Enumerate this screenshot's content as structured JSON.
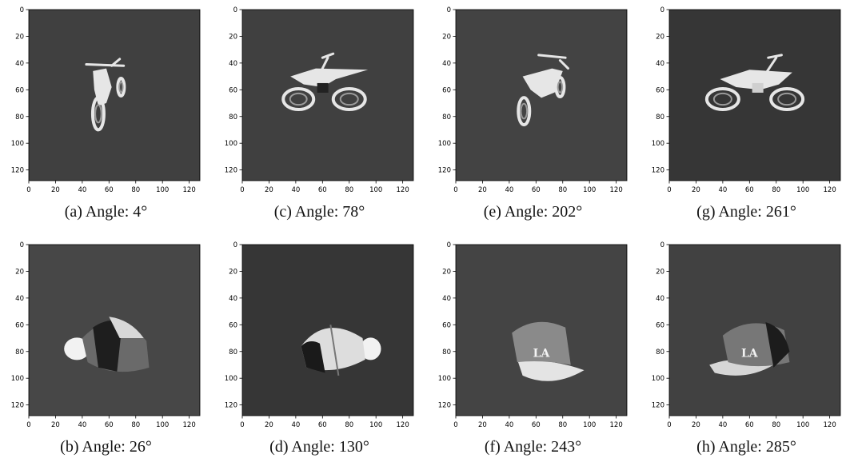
{
  "figure": {
    "axis": {
      "ticks": [
        0,
        20,
        40,
        60,
        80,
        100,
        120
      ],
      "xlim": [
        0,
        128
      ],
      "ylim": [
        0,
        128
      ],
      "y_inverted": true
    },
    "panels": [
      {
        "caption": "(a) Angle: 4°",
        "object": "motorcycle",
        "pose": "rear-three-quarter",
        "bg": "#404040"
      },
      {
        "caption": "(c) Angle: 78°",
        "object": "motorcycle",
        "pose": "side-left",
        "bg": "#404040"
      },
      {
        "caption": "(e) Angle: 202°",
        "object": "motorcycle",
        "pose": "front-three-quarter",
        "bg": "#434343"
      },
      {
        "caption": "(g) Angle: 261°",
        "object": "motorcycle",
        "pose": "side-right",
        "bg": "#363636"
      },
      {
        "caption": "(b) Angle: 26°",
        "object": "cap",
        "pose": "brim-left",
        "bg": "#474747"
      },
      {
        "caption": "(d) Angle: 130°",
        "object": "cap",
        "pose": "brim-right",
        "bg": "#363636"
      },
      {
        "caption": "(f) Angle: 243°",
        "object": "cap",
        "pose": "front-logo",
        "bg": "#444444"
      },
      {
        "caption": "(h) Angle: 285°",
        "object": "cap",
        "pose": "front-logo-left",
        "bg": "#414141"
      }
    ]
  }
}
